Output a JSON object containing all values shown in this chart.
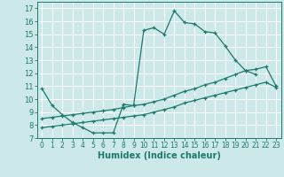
{
  "xlabel": "Humidex (Indice chaleur)",
  "background_color": "#cce8e8",
  "grid_color": "#b0d8d8",
  "line_color": "#1a7a6e",
  "xlim": [
    -0.5,
    23.5
  ],
  "ylim": [
    7,
    17.5
  ],
  "yticks": [
    7,
    8,
    9,
    10,
    11,
    12,
    13,
    14,
    15,
    16,
    17
  ],
  "xticks": [
    0,
    1,
    2,
    3,
    4,
    5,
    6,
    7,
    8,
    9,
    10,
    11,
    12,
    13,
    14,
    15,
    16,
    17,
    18,
    19,
    20,
    21,
    22,
    23
  ],
  "series1_x": [
    0,
    1,
    2,
    3,
    4,
    5,
    6,
    7,
    8,
    9,
    10,
    11,
    12,
    13,
    14,
    15,
    16,
    17,
    18,
    19,
    20,
    21
  ],
  "series1_y": [
    10.8,
    9.5,
    8.8,
    8.2,
    7.8,
    7.4,
    7.4,
    7.4,
    9.6,
    9.5,
    15.3,
    15.5,
    15.0,
    16.8,
    15.9,
    15.8,
    15.2,
    15.1,
    14.1,
    13.0,
    12.2,
    11.9
  ],
  "series2_x": [
    0,
    1,
    2,
    3,
    4,
    5,
    6,
    7,
    8,
    9,
    10,
    11,
    12,
    13,
    14,
    15,
    16,
    17,
    18,
    19,
    20,
    21,
    22,
    23
  ],
  "series2_y": [
    8.5,
    8.6,
    8.7,
    8.8,
    8.9,
    9.0,
    9.1,
    9.2,
    9.35,
    9.5,
    9.6,
    9.8,
    10.0,
    10.3,
    10.6,
    10.8,
    11.1,
    11.3,
    11.6,
    11.9,
    12.2,
    12.3,
    12.5,
    11.0
  ],
  "series3_x": [
    0,
    1,
    2,
    3,
    4,
    5,
    6,
    7,
    8,
    9,
    10,
    11,
    12,
    13,
    14,
    15,
    16,
    17,
    18,
    19,
    20,
    21,
    22,
    23
  ],
  "series3_y": [
    7.8,
    7.9,
    8.0,
    8.1,
    8.2,
    8.3,
    8.4,
    8.5,
    8.6,
    8.7,
    8.8,
    9.0,
    9.2,
    9.4,
    9.7,
    9.9,
    10.1,
    10.3,
    10.5,
    10.7,
    10.9,
    11.1,
    11.3,
    10.9
  ]
}
